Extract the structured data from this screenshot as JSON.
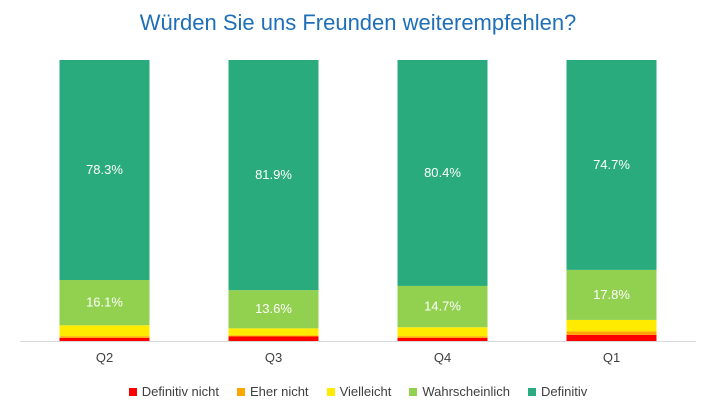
{
  "chart_data": {
    "type": "bar",
    "stacked": true,
    "orientation": "vertical",
    "title": "Würden Sie uns Freunden weiterempfehlen?",
    "categories": [
      "Q2",
      "Q3",
      "Q4",
      "Q1"
    ],
    "series": [
      {
        "name": "Definitiv nicht",
        "color": "#ff0000",
        "values": [
          1.1,
          1.6,
          1.1,
          2.2
        ]
      },
      {
        "name": "Eher nicht",
        "color": "#ffa500",
        "values": [
          0.6,
          0.4,
          0.6,
          1.2
        ]
      },
      {
        "name": "Vielleicht",
        "color": "#ffeb00",
        "values": [
          3.9,
          2.5,
          3.2,
          4.1
        ]
      },
      {
        "name": "Wahrscheinlich",
        "color": "#92d050",
        "values": [
          16.1,
          13.6,
          14.7,
          17.8
        ]
      },
      {
        "name": "Definitiv",
        "color": "#2aab7d",
        "values": [
          78.3,
          81.9,
          80.4,
          74.7
        ]
      }
    ],
    "data_labels": {
      "Wahrscheinlich": [
        "16.1%",
        "13.6%",
        "14.7%",
        "17.8%"
      ],
      "Definitiv": [
        "78.3%",
        "81.9%",
        "80.4%",
        "74.7%"
      ]
    },
    "ylim": [
      0,
      100
    ],
    "grid": false,
    "legend_position": "bottom"
  }
}
